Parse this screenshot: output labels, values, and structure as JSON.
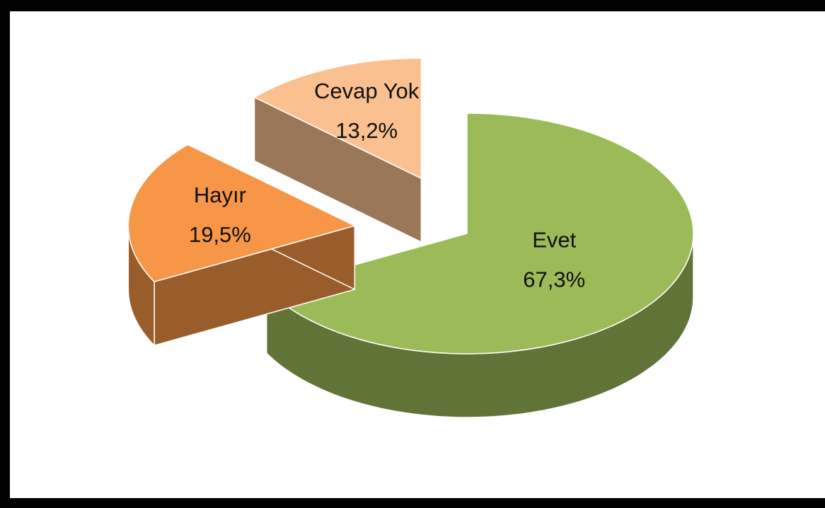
{
  "chart_data": {
    "type": "pie",
    "categories": [
      "Evet",
      "Hayır",
      "Cevap Yok"
    ],
    "values": [
      67.3,
      19.5,
      13.2
    ],
    "value_labels": [
      "67,3%",
      "19,5%",
      "13,2%"
    ],
    "colors": [
      "#9bbb59",
      "#f79646",
      "#fac090"
    ]
  }
}
